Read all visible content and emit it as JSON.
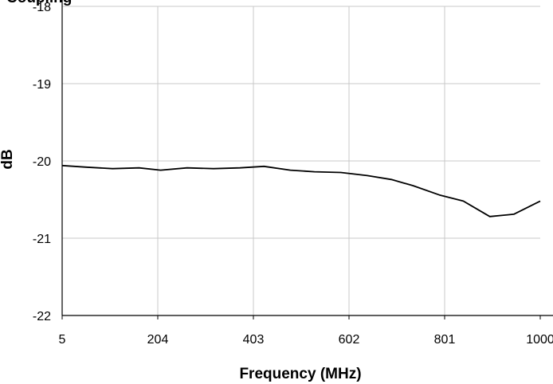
{
  "chart_data": {
    "type": "line",
    "title": "Coupling",
    "xlabel": "Frequency (MHz)",
    "ylabel": "dB",
    "x_ticks": [
      "5",
      "204",
      "403",
      "602",
      "801",
      "1000"
    ],
    "y_ticks": [
      "-18",
      "-19",
      "-20",
      "-21",
      "-22"
    ],
    "xlim": [
      5,
      1000
    ],
    "ylim": [
      -22,
      -18
    ],
    "grid": true,
    "series": [
      {
        "x": [
          5,
          55,
          110,
          165,
          210,
          265,
          320,
          375,
          425,
          480,
          530,
          585,
          640,
          690,
          735,
          790,
          840,
          895,
          945,
          1000
        ],
        "y": [
          -20.06,
          -20.08,
          -20.1,
          -20.09,
          -20.12,
          -20.09,
          -20.1,
          -20.09,
          -20.07,
          -20.12,
          -20.14,
          -20.15,
          -20.19,
          -20.24,
          -20.32,
          -20.44,
          -20.52,
          -20.72,
          -20.69,
          -20.52
        ]
      }
    ]
  }
}
